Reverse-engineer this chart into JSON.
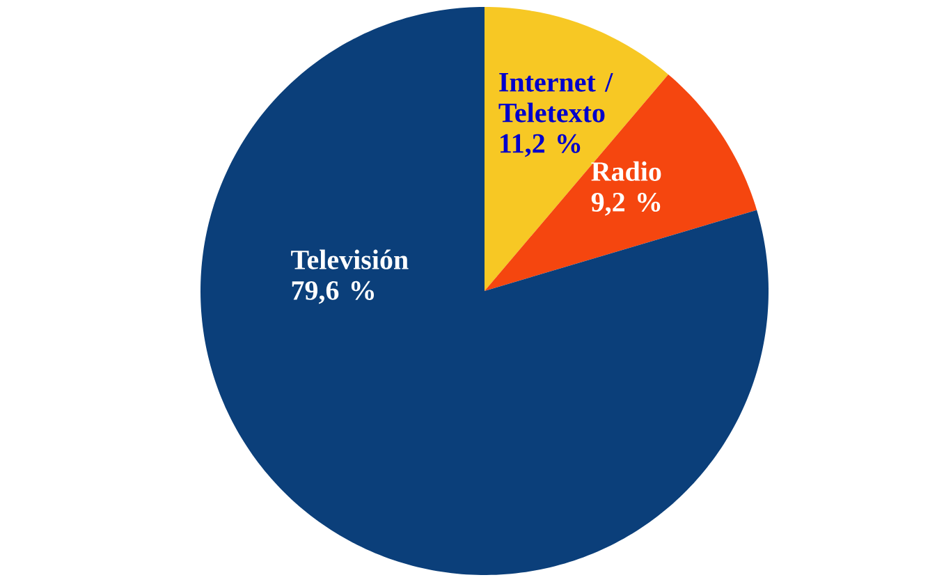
{
  "chart_data": {
    "type": "pie",
    "categories": [
      "Internet / Teletexto",
      "Radio",
      "Televisión"
    ],
    "values": [
      11.2,
      9.2,
      79.6
    ],
    "value_labels": [
      "11,2 %",
      "9,2 %",
      "79,6 %"
    ],
    "colors": [
      "#f7c824",
      "#f5460f",
      "#0b3f7a"
    ]
  }
}
